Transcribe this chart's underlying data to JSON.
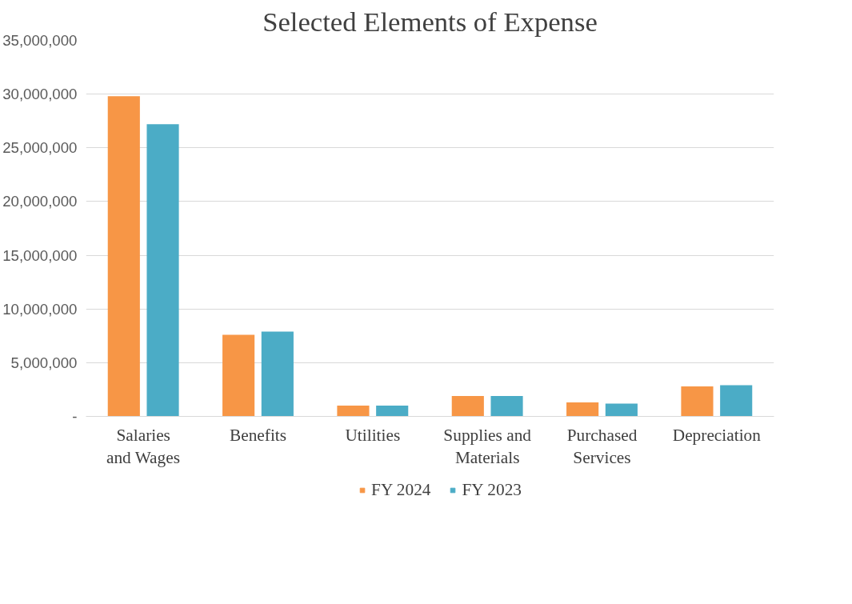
{
  "chart_data": {
    "type": "bar",
    "title": "Selected Elements of Expense",
    "categories": [
      "Salaries and Wages",
      "Benefits",
      "Utilities",
      "Supplies and Materials",
      "Purchased Services",
      "Depreciation"
    ],
    "series": [
      {
        "name": "FY 2024",
        "color": "#f79646",
        "values": [
          29800000,
          7600000,
          1000000,
          1900000,
          1300000,
          2800000
        ]
      },
      {
        "name": "FY 2023",
        "color": "#4bacc6",
        "values": [
          27200000,
          7900000,
          1000000,
          1900000,
          1200000,
          2900000
        ]
      }
    ],
    "ylim": [
      0,
      35000000
    ],
    "yticks": [
      {
        "value": 0,
        "label": "-"
      },
      {
        "value": 5000000,
        "label": "5,000,000"
      },
      {
        "value": 10000000,
        "label": "10,000,000"
      },
      {
        "value": 15000000,
        "label": "15,000,000"
      },
      {
        "value": 20000000,
        "label": "20,000,000"
      },
      {
        "value": 25000000,
        "label": "25,000,000"
      },
      {
        "value": 30000000,
        "label": "30,000,000"
      },
      {
        "value": 35000000,
        "label": "35,000,000"
      }
    ],
    "grid": "y",
    "legend": "bottom"
  }
}
